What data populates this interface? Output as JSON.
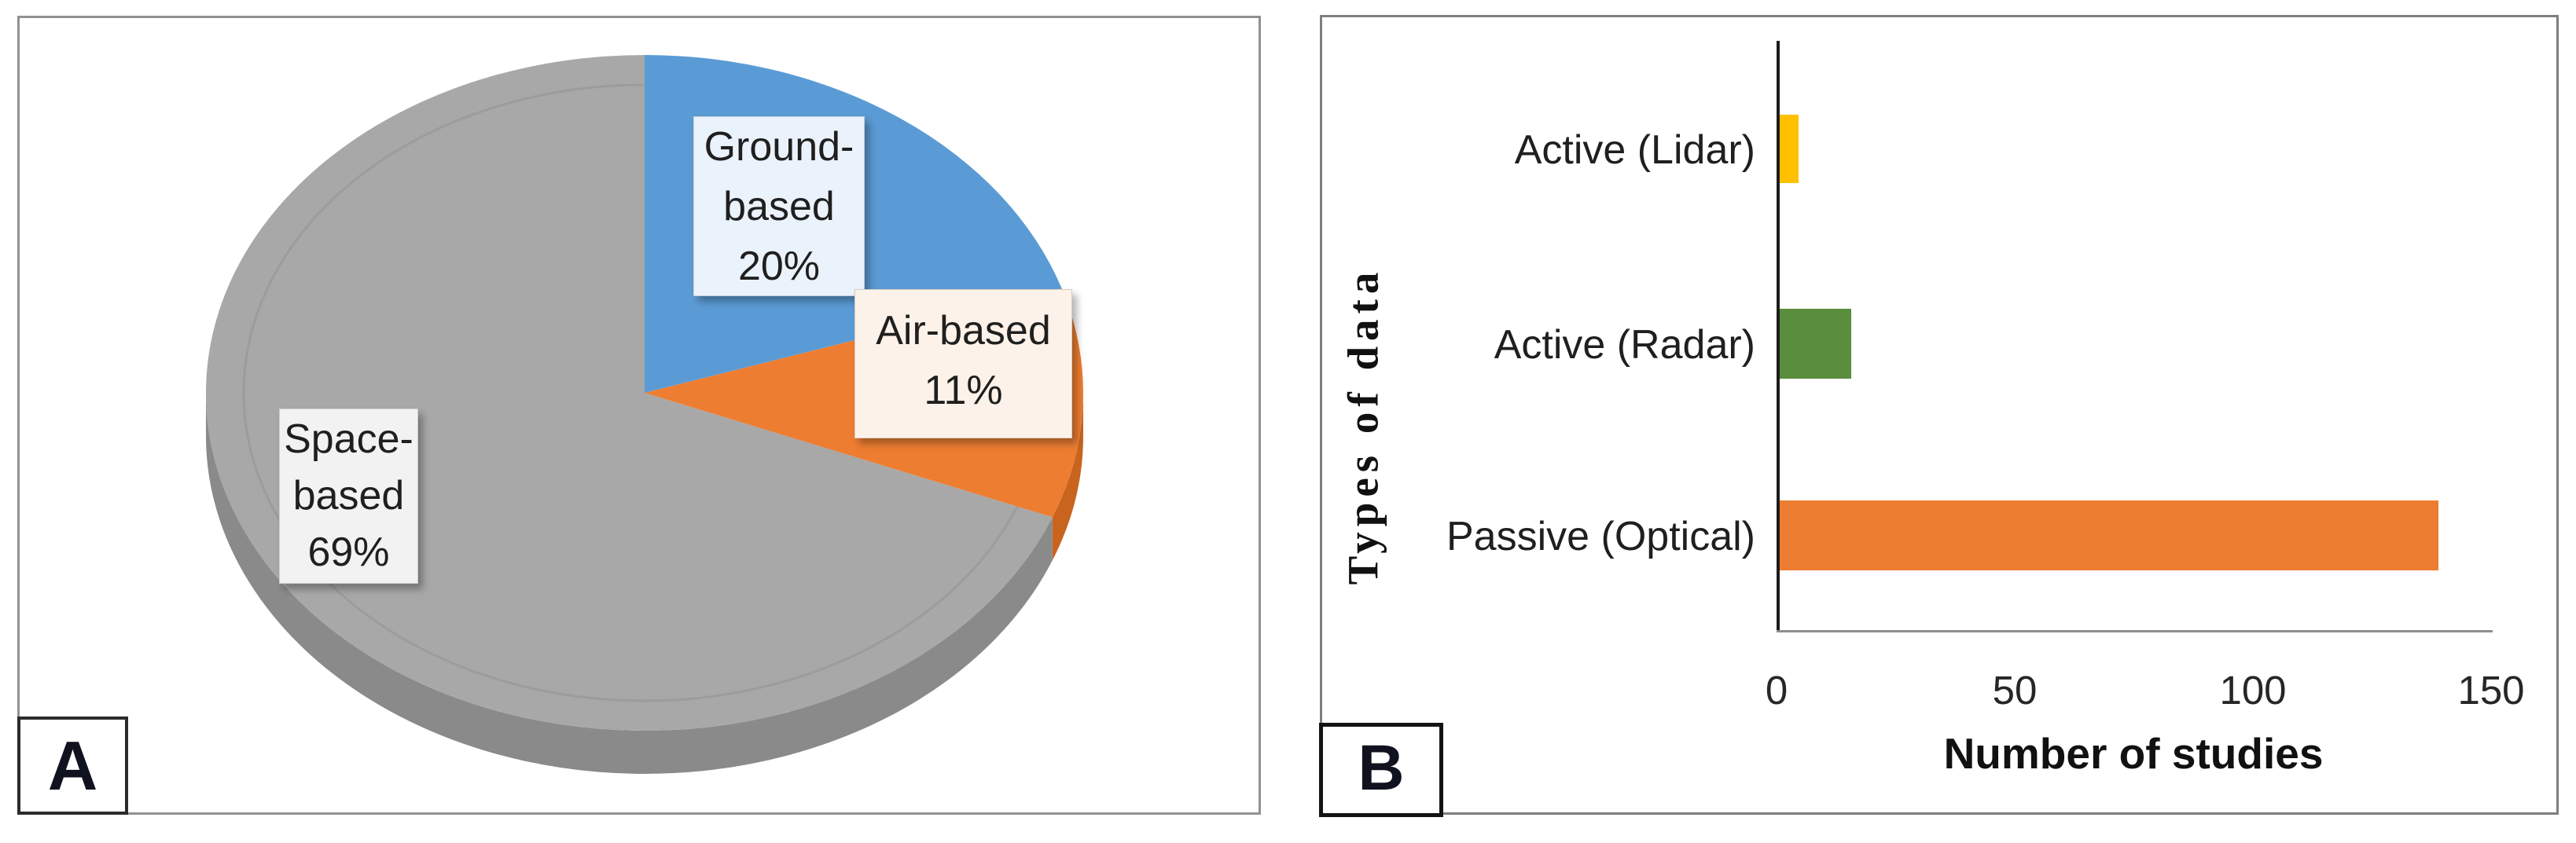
{
  "panels": {
    "a_letter": "A",
    "b_letter": "B"
  },
  "chart_data": [
    {
      "type": "pie",
      "panel": "A",
      "style": "3d",
      "start_angle": "12-oclock",
      "direction": "clockwise",
      "labels": [
        "Ground-based",
        "Air-based",
        "Space-based"
      ],
      "values_percent": [
        20,
        11,
        69
      ],
      "colors": [
        "#5B9BD5",
        "#ED7D31",
        "#A8A8A8"
      ],
      "side_colors": [
        "#3F7AB5",
        "#C9641E",
        "#8A8A8A"
      ],
      "label_boxes": {
        "ground": {
          "lines": [
            "Ground-",
            "based",
            "20%"
          ],
          "fill": "#EAF2FB"
        },
        "air": {
          "lines": [
            "Air-based",
            "11%"
          ],
          "fill": "#FCF2E9"
        },
        "space": {
          "lines": [
            "Space-",
            "based",
            "69%"
          ],
          "fill": "#F2F2F2"
        }
      }
    },
    {
      "type": "bar",
      "panel": "B",
      "orientation": "horizontal",
      "categories": [
        "Active (Lidar)",
        "Active (Radar)",
        "Passive (Optical)"
      ],
      "values": [
        4,
        15,
        138
      ],
      "colors": [
        "#FFC000",
        "#5A8D3C",
        "#ED7D31"
      ],
      "xlabel": "Number of studies",
      "ylabel": "Types of data",
      "xlim": [
        0,
        150
      ],
      "xticks": [
        0,
        50,
        100,
        150
      ],
      "grid": false,
      "legend": "none"
    }
  ]
}
